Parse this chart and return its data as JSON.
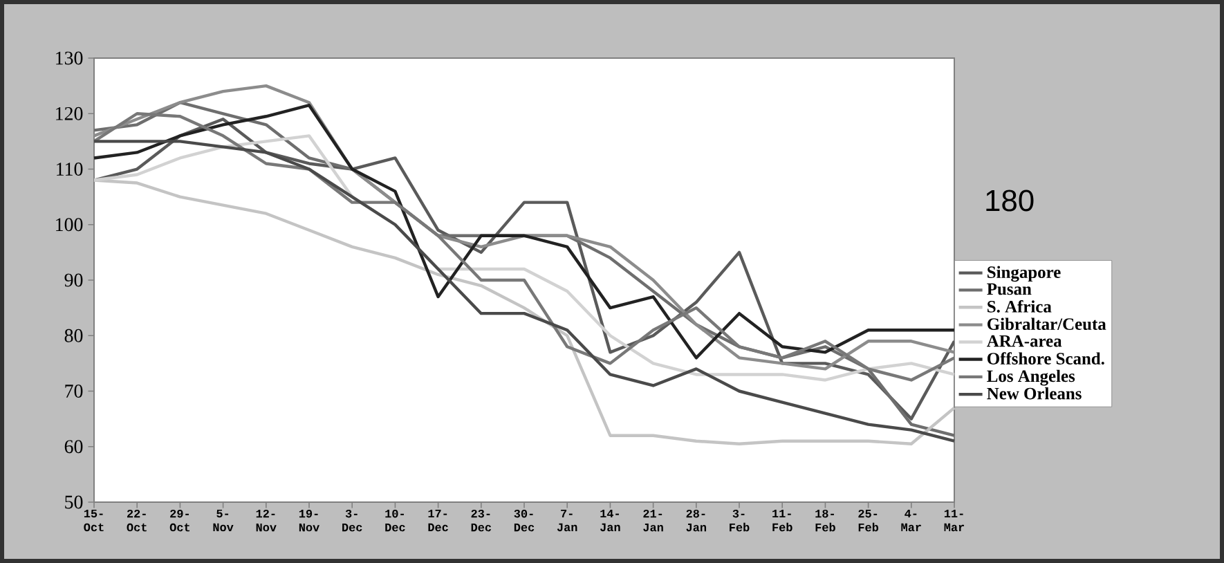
{
  "chart_data": {
    "type": "line",
    "categories": [
      "15- Oct",
      "22- Oct",
      "29- Oct",
      "5- Nov",
      "12- Nov",
      "19- Nov",
      "3- Dec",
      "10- Dec",
      "17- Dec",
      "23- Dec",
      "30- Dec",
      "7- Jan",
      "14- Jan",
      "21- Jan",
      "28- Jan",
      "3- Feb",
      "11- Feb",
      "18- Feb",
      "25- Feb",
      "4- Mar",
      "11- Mar"
    ],
    "ylim": [
      50,
      130
    ],
    "yticks": [
      50,
      60,
      70,
      80,
      90,
      100,
      110,
      120,
      130
    ],
    "series": [
      {
        "name": "Singapore",
        "color": "#5a5a5a",
        "values": [
          108,
          110,
          116,
          119,
          113,
          111,
          110,
          112,
          99,
          95,
          104,
          104,
          77,
          80,
          86,
          95,
          75,
          75,
          73,
          65,
          79
        ]
      },
      {
        "name": "Pusan",
        "color": "#6e6e6e",
        "values": [
          117,
          118,
          122,
          120,
          118,
          112,
          110,
          104,
          98,
          98,
          98,
          98,
          94,
          88,
          82,
          78,
          76,
          78,
          74,
          64,
          62
        ]
      },
      {
        "name": "S. Africa",
        "color": "#c4c4c4",
        "values": [
          108,
          107.5,
          105,
          103.5,
          102,
          99,
          96,
          94,
          91,
          89,
          85,
          80,
          62,
          62,
          61,
          60.5,
          61,
          61,
          61,
          60.5,
          67
        ]
      },
      {
        "name": "Gibraltar/Ceuta",
        "color": "#8c8c8c",
        "values": [
          116,
          119,
          122,
          124,
          125,
          122,
          110,
          104,
          98,
          96,
          98,
          98,
          96,
          90,
          82,
          76,
          75,
          74,
          79,
          79,
          77
        ]
      },
      {
        "name": "ARA-area",
        "color": "#d2d2d2",
        "values": [
          108,
          109,
          112,
          114,
          115,
          116,
          105,
          100,
          92,
          92,
          92,
          88,
          80,
          75,
          73,
          73,
          73,
          72,
          74,
          75,
          73
        ]
      },
      {
        "name": "Offshore Scand.",
        "color": "#222222",
        "values": [
          112,
          113,
          116,
          118,
          119.5,
          121.5,
          110,
          106,
          87,
          98,
          98,
          96,
          85,
          87,
          76,
          84,
          78,
          77,
          81,
          81,
          81
        ]
      },
      {
        "name": "Los Angeles",
        "color": "#787878",
        "values": [
          115,
          120,
          119.5,
          116,
          111,
          110,
          104,
          104,
          98,
          90,
          90,
          78,
          75,
          81,
          85,
          78,
          76,
          79,
          74,
          72,
          76
        ]
      },
      {
        "name": "New Orleans",
        "color": "#4a4a4a",
        "values": [
          115,
          115,
          115,
          114,
          113,
          110,
          105,
          100,
          92,
          84,
          84,
          81,
          73,
          71,
          74,
          70,
          68,
          66,
          64,
          63,
          61
        ]
      }
    ],
    "legend": "right",
    "annotations": [
      "180"
    ]
  }
}
